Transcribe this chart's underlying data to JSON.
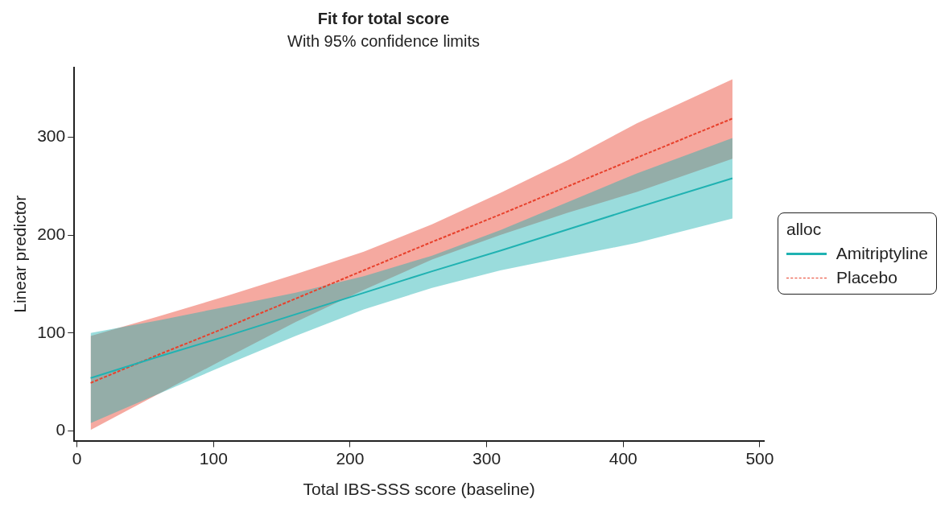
{
  "chart_data": {
    "type": "line",
    "title": "Fit for total score",
    "subtitle": "With 95% confidence limits",
    "xlabel": "Total IBS-SSS score (baseline)",
    "ylabel": "Linear predictor",
    "legend_title": "alloc",
    "legend": "right",
    "grid": false,
    "marker": "none",
    "x": [
      10,
      60,
      110,
      160,
      210,
      260,
      310,
      360,
      410,
      480
    ],
    "xlim": [
      -2,
      503
    ],
    "xticks": [
      0,
      100,
      200,
      300,
      400,
      500
    ],
    "ylim": [
      -10,
      371
    ],
    "yticks": [
      0,
      100,
      200,
      300
    ],
    "series": [
      {
        "name": "Amitriptyline",
        "color": "#20b2b2",
        "line_style": "solid",
        "values": [
          54,
          76,
          97,
          119,
          141,
          163,
          184,
          206,
          228,
          258
        ],
        "lower": [
          8,
          38,
          68,
          97,
          124,
          146,
          164,
          178,
          192,
          217
        ],
        "upper": [
          100,
          113,
          127,
          141,
          158,
          179,
          205,
          234,
          263,
          299
        ]
      },
      {
        "name": "Placebo",
        "color": "#e8412c",
        "line_style": "dashed",
        "values": [
          49,
          78,
          106,
          135,
          164,
          193,
          221,
          250,
          279,
          319
        ],
        "lower": [
          1,
          38,
          75,
          111,
          144,
          175,
          200,
          223,
          244,
          278
        ],
        "upper": [
          97,
          117,
          138,
          160,
          183,
          211,
          243,
          277,
          314,
          359
        ]
      }
    ]
  }
}
